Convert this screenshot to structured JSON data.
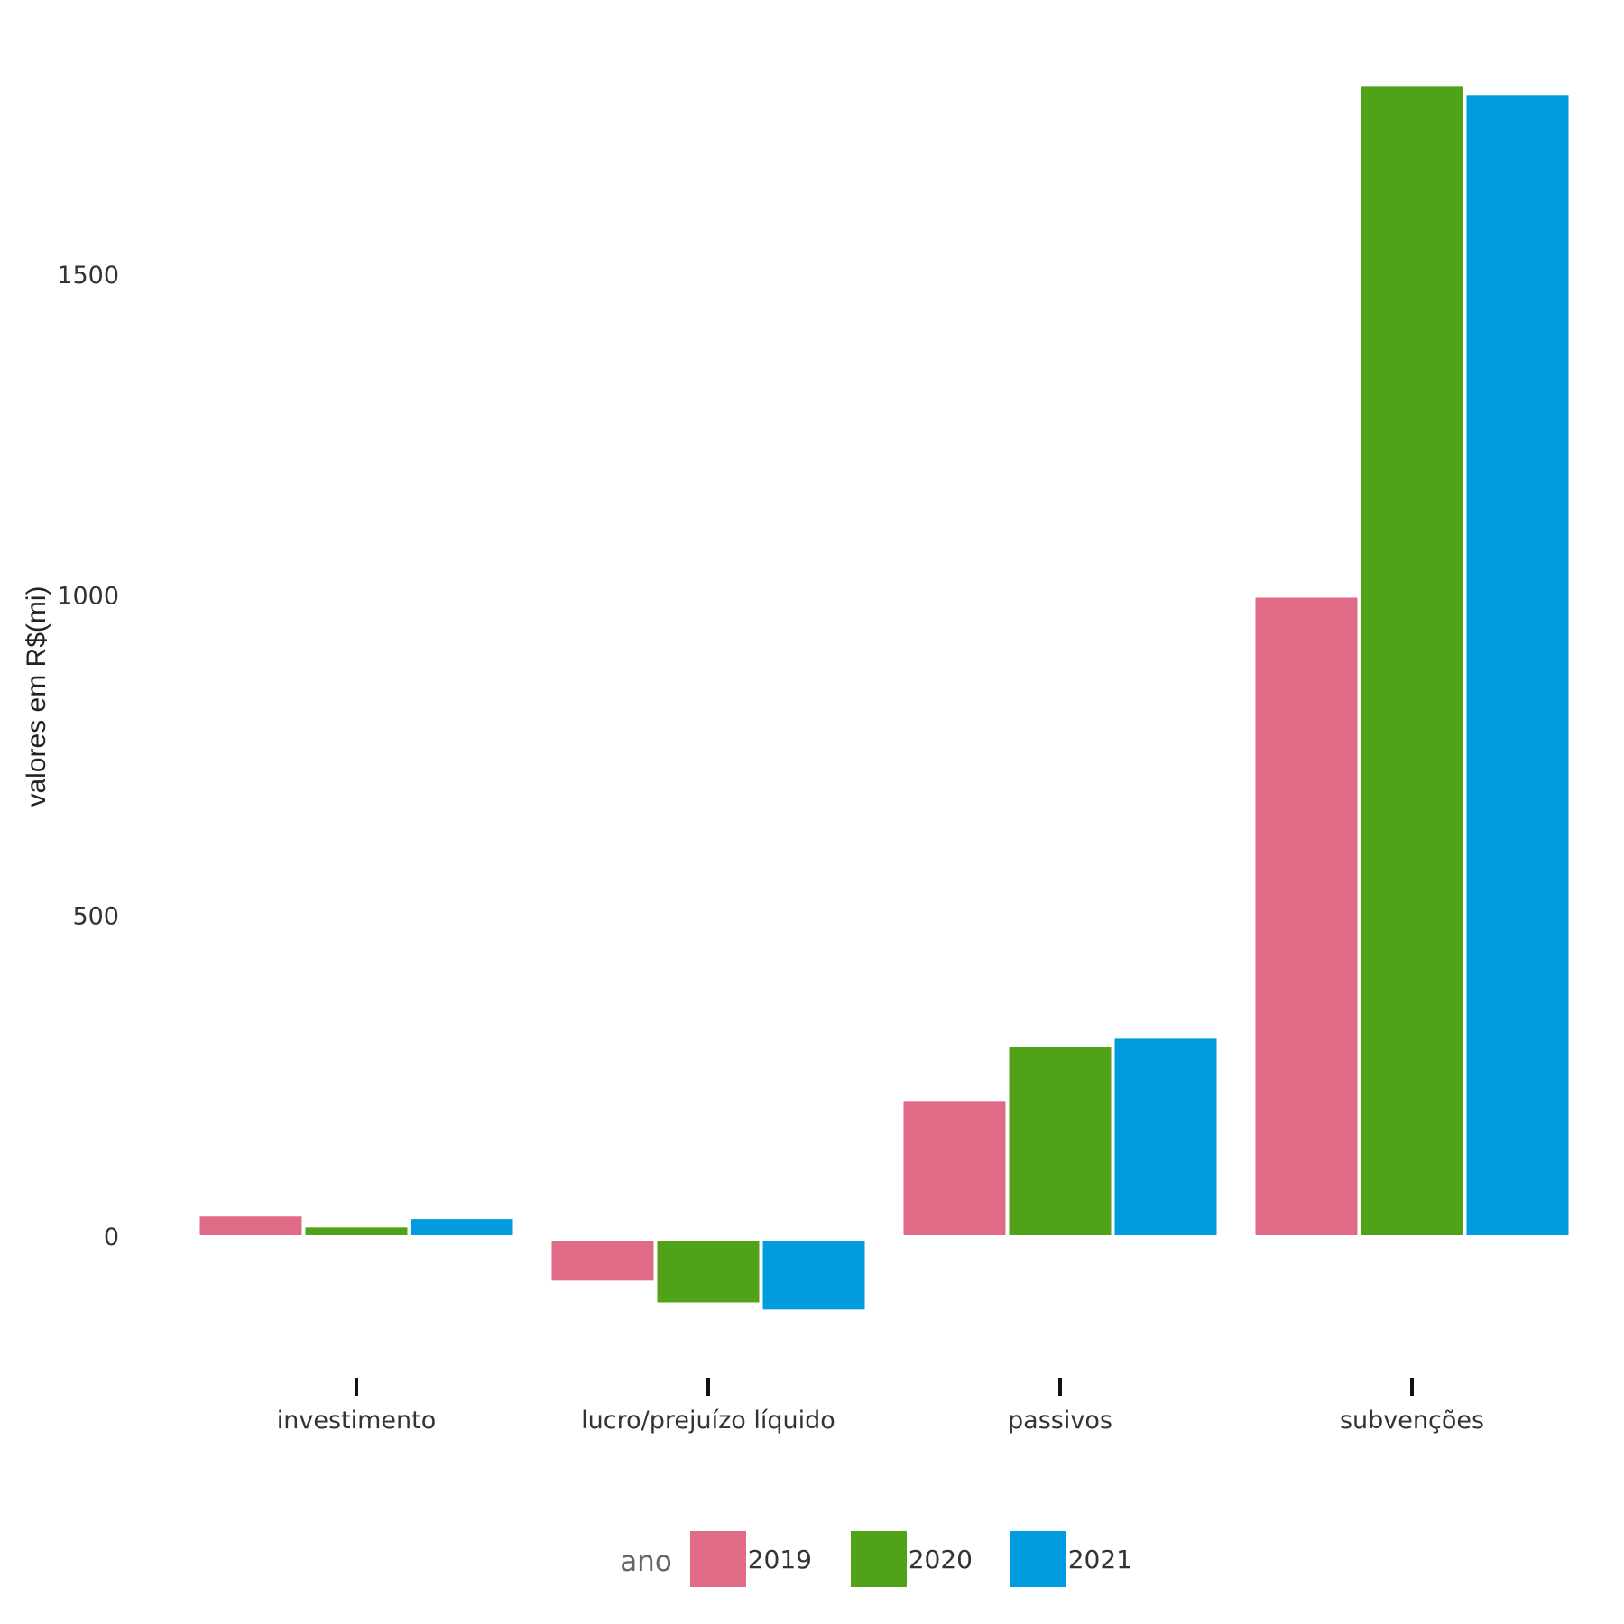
{
  "chart_data": {
    "type": "bar",
    "categories": [
      "investimento",
      "lucro/prejuízo líquido",
      "passivos",
      "subvenções"
    ],
    "series": [
      {
        "name": "2019",
        "color": "#E06B86",
        "values": [
          32,
          -68,
          212,
          997
        ]
      },
      {
        "name": "2020",
        "color": "#50A318",
        "values": [
          15,
          -102,
          296,
          1795
        ]
      },
      {
        "name": "2021",
        "color": "#009CDE",
        "values": [
          28,
          -113,
          309,
          1781
        ]
      }
    ],
    "ylabel": "valores em R$(mi)",
    "xlabel": "",
    "ylim": [
      -180,
      1845
    ],
    "yticks": [
      0,
      500,
      1000,
      1500
    ],
    "grid": false,
    "legend": {
      "title": "ano",
      "position": "bottom"
    }
  }
}
